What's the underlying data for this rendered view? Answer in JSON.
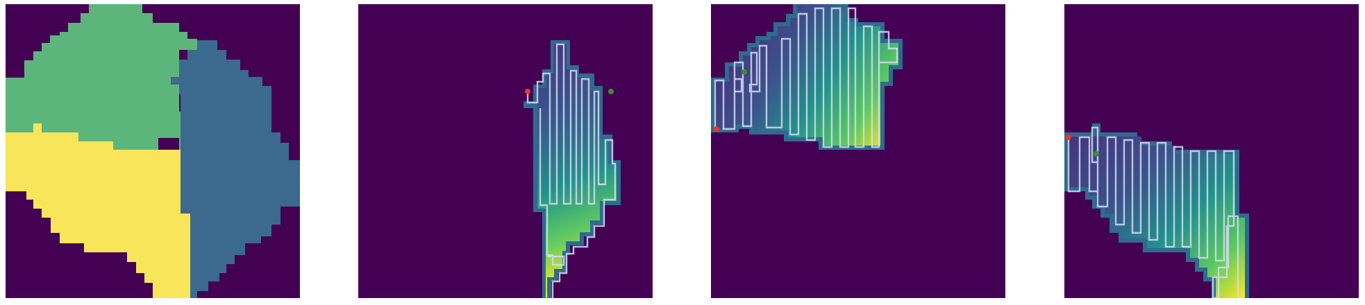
{
  "figure": {
    "panels": [
      {
        "id": "segmentation",
        "kind": "region-segmentation"
      },
      {
        "id": "coverage-path-region-1",
        "kind": "coverage-path",
        "path_color": "#d6dcf0",
        "start_marker": "red",
        "end_marker": "green"
      },
      {
        "id": "coverage-path-region-2",
        "kind": "coverage-path",
        "path_color": "#d6dcf0",
        "start_marker": "red",
        "end_marker": "green"
      },
      {
        "id": "coverage-path-region-3",
        "kind": "coverage-path",
        "path_color": "#d6dcf0",
        "start_marker": "red",
        "end_marker": "green"
      }
    ],
    "colors": {
      "background": "#440154",
      "region_green": "#5cb67b",
      "region_blue": "#3b6a8e",
      "region_yellow": "#f8e55a",
      "start_marker": "#e8372b",
      "end_marker": "#3a8f2c"
    }
  }
}
